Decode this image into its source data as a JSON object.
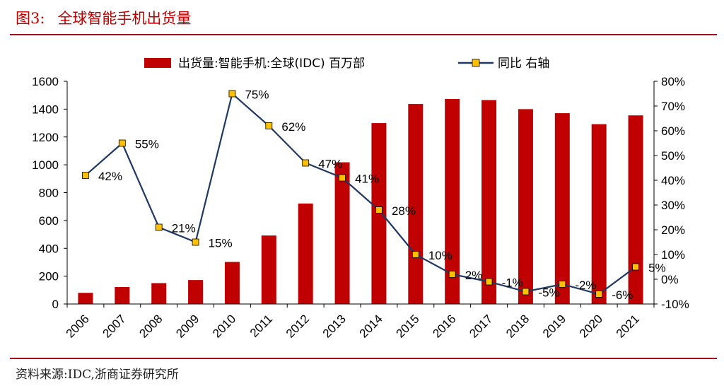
{
  "header": {
    "label": "图3:",
    "title": "全球智能手机出货量"
  },
  "footer": {
    "source": "资料来源:IDC,浙商证券研究所"
  },
  "colors": {
    "bar": "#c00000",
    "line": "#1f3864",
    "marker_fill": "#ffc000",
    "rule": "#a50021"
  },
  "chart_data": {
    "type": "bar",
    "categories": [
      "2006",
      "2007",
      "2008",
      "2009",
      "2010",
      "2011",
      "2012",
      "2013",
      "2014",
      "2015",
      "2016",
      "2017",
      "2018",
      "2019",
      "2020",
      "2021"
    ],
    "series": [
      {
        "name": "出货量:智能手机:全球(IDC) 百万部",
        "type": "bar",
        "axis": "left",
        "values": [
          80,
          122,
          150,
          172,
          302,
          492,
          722,
          1018,
          1300,
          1437,
          1473,
          1465,
          1400,
          1371,
          1292,
          1355
        ]
      },
      {
        "name": "同比 右轴",
        "type": "line",
        "axis": "right",
        "values": [
          42,
          55,
          21,
          15,
          75,
          62,
          47,
          41,
          28,
          10,
          2,
          -1,
          -5,
          -2,
          -6,
          5
        ],
        "labels": [
          "42%",
          "55%",
          "21%",
          "15%",
          "75%",
          "62%",
          "47%",
          "41%",
          "28%",
          "10%",
          "2%",
          "-1%",
          "-5%",
          "-2%",
          "-6%",
          "5%"
        ]
      }
    ],
    "y_left": {
      "lim": [
        0,
        1600
      ],
      "ticks": [
        "0",
        "200",
        "400",
        "600",
        "800",
        "1000",
        "1200",
        "1400",
        "1600"
      ]
    },
    "y_right": {
      "lim": [
        -10,
        80
      ],
      "ticks": [
        "-10%",
        "0%",
        "10%",
        "20%",
        "30%",
        "40%",
        "50%",
        "60%",
        "70%",
        "80%"
      ]
    },
    "legend": "top",
    "grid": false
  }
}
